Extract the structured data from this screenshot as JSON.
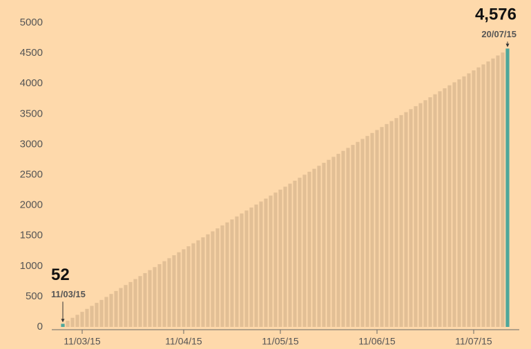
{
  "chart_data": {
    "type": "bar",
    "categories": [
      null,
      null,
      null,
      null,
      "11/03/15",
      null,
      null,
      null,
      null,
      null,
      null,
      null,
      null,
      null,
      null,
      null,
      null,
      null,
      null,
      null,
      null,
      null,
      null,
      null,
      null,
      "11/04/15",
      null,
      null,
      null,
      null,
      null,
      null,
      null,
      null,
      null,
      null,
      null,
      null,
      null,
      null,
      null,
      null,
      null,
      null,
      null,
      "11/05/15",
      null,
      null,
      null,
      null,
      null,
      null,
      null,
      null,
      null,
      null,
      null,
      null,
      null,
      null,
      null,
      null,
      null,
      null,
      null,
      "11/06/15",
      null,
      null,
      null,
      null,
      null,
      null,
      null,
      null,
      null,
      null,
      null,
      null,
      null,
      null,
      null,
      null,
      null,
      null,
      null,
      "11/07/15",
      null,
      null,
      null,
      null,
      null,
      null,
      null
    ],
    "values": [
      52,
      101,
      150,
      199,
      248,
      297,
      346,
      395,
      444,
      493,
      542,
      591,
      640,
      689,
      738,
      787,
      836,
      885,
      934,
      983,
      1032,
      1081,
      1130,
      1179,
      1228,
      1277,
      1326,
      1375,
      1424,
      1473,
      1522,
      1571,
      1620,
      1669,
      1718,
      1767,
      1816,
      1865,
      1914,
      1963,
      2012,
      2061,
      2110,
      2159,
      2208,
      2257,
      2306,
      2355,
      2404,
      2453,
      2502,
      2551,
      2600,
      2649,
      2698,
      2747,
      2796,
      2845,
      2894,
      2943,
      2992,
      3041,
      3090,
      3139,
      3188,
      3237,
      3286,
      3335,
      3384,
      3433,
      3482,
      3531,
      3580,
      3629,
      3678,
      3727,
      3776,
      3825,
      3874,
      3923,
      3972,
      4021,
      4070,
      4119,
      4168,
      4217,
      4266,
      4315,
      4364,
      4413,
      4462,
      4511,
      4576
    ],
    "value_labels": [
      "52",
      null,
      null,
      null,
      null,
      null,
      null,
      null,
      null,
      null,
      null,
      null,
      null,
      null,
      null,
      null,
      null,
      null,
      null,
      null,
      null,
      null,
      null,
      null,
      null,
      null,
      null,
      null,
      null,
      null,
      null,
      null,
      null,
      null,
      null,
      null,
      null,
      null,
      null,
      null,
      null,
      null,
      null,
      null,
      null,
      null,
      null,
      null,
      null,
      null,
      null,
      null,
      null,
      null,
      null,
      null,
      null,
      null,
      null,
      null,
      null,
      null,
      null,
      null,
      null,
      null,
      null,
      null,
      null,
      null,
      null,
      null,
      null,
      null,
      null,
      null,
      null,
      null,
      null,
      null,
      null,
      null,
      null,
      null,
      null,
      null,
      null,
      null,
      null,
      null,
      null,
      null,
      "4,576"
    ],
    "value_dates": [
      "11/03/15",
      null,
      null,
      null,
      null,
      null,
      null,
      null,
      null,
      null,
      null,
      null,
      null,
      null,
      null,
      null,
      null,
      null,
      null,
      null,
      null,
      null,
      null,
      null,
      null,
      null,
      null,
      null,
      null,
      null,
      null,
      null,
      null,
      null,
      null,
      null,
      null,
      null,
      null,
      null,
      null,
      null,
      null,
      null,
      null,
      null,
      null,
      null,
      null,
      null,
      null,
      null,
      null,
      null,
      null,
      null,
      null,
      null,
      null,
      null,
      null,
      null,
      null,
      null,
      null,
      null,
      null,
      null,
      null,
      null,
      null,
      null,
      null,
      null,
      null,
      null,
      null,
      null,
      null,
      null,
      null,
      null,
      null,
      null,
      null,
      null,
      null,
      null,
      null,
      null,
      null,
      null,
      "20/07/15"
    ],
    "color": "#e2bf95",
    "highlight_color": "#4ea79b",
    "ylim": [
      0,
      5000
    ],
    "yticks": [
      0,
      500,
      1000,
      1500,
      2000,
      2500,
      3000,
      3500,
      4000,
      4500,
      5000
    ]
  }
}
